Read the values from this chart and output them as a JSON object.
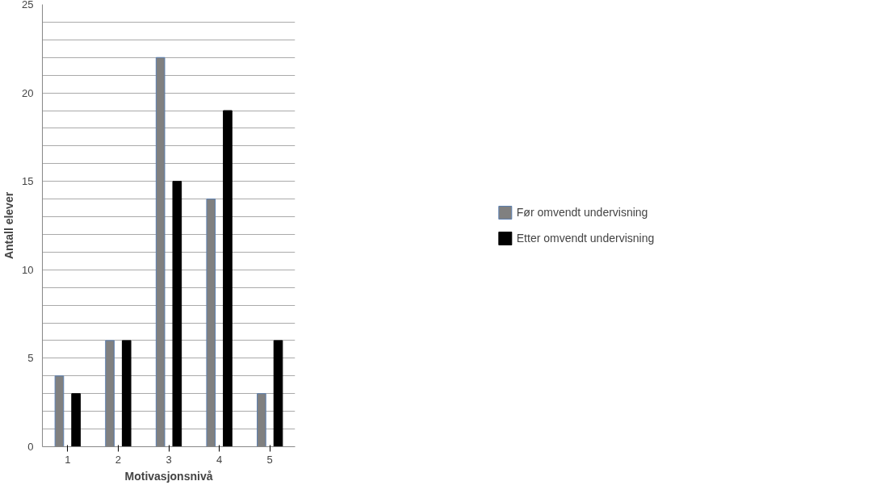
{
  "chart_data": {
    "type": "bar",
    "xlabel": "Motivasjonsnivå",
    "ylabel": "Antall elever",
    "categories": [
      "1",
      "2",
      "3",
      "4",
      "5"
    ],
    "series": [
      {
        "name": "Før omvendt undervisning",
        "color": "#808080",
        "values": [
          4,
          6,
          22,
          14,
          3
        ]
      },
      {
        "name": "Etter omvendt undervisning",
        "color": "#000000",
        "values": [
          3,
          6,
          15,
          19,
          6
        ]
      }
    ],
    "ylim": [
      0,
      25
    ],
    "yticks": [
      0,
      {
        "value": 1,
        "label": null
      },
      {
        "value": 2,
        "label": null
      },
      {
        "value": 3,
        "label": null
      },
      {
        "value": 4,
        "label": null
      },
      5,
      {
        "value": 6,
        "label": null
      },
      {
        "value": 7,
        "label": null
      },
      {
        "value": 8,
        "label": null
      },
      {
        "value": 9,
        "label": null
      },
      10,
      {
        "value": 11,
        "label": null
      },
      {
        "value": 12,
        "label": null
      },
      {
        "value": 13,
        "label": null
      },
      {
        "value": 14,
        "label": null
      },
      15,
      {
        "value": 16,
        "label": null
      },
      {
        "value": 17,
        "label": null
      },
      {
        "value": 18,
        "label": null
      },
      {
        "value": 19,
        "label": null
      },
      20,
      {
        "value": 21,
        "label": null
      },
      {
        "value": 22,
        "label": null
      },
      {
        "value": 23,
        "label": null
      },
      {
        "value": 24,
        "label": null
      },
      25
    ],
    "grid": "y",
    "legend": "right"
  }
}
